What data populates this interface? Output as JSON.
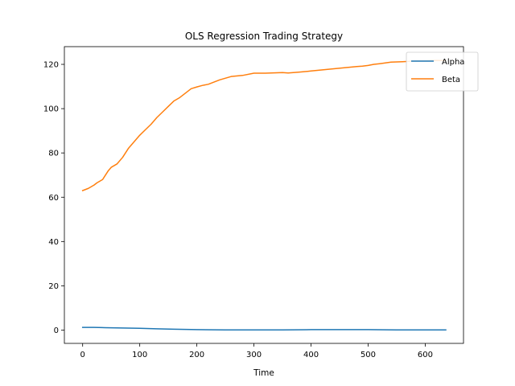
{
  "chart_data": {
    "type": "line",
    "title": "OLS Regression Trading Strategy",
    "xlabel": "Time",
    "ylabel": "",
    "xlim": [
      -32,
      667
    ],
    "ylim": [
      -6,
      128
    ],
    "xticks": [
      0,
      100,
      200,
      300,
      400,
      500,
      600
    ],
    "yticks": [
      0,
      20,
      40,
      60,
      80,
      100,
      120
    ],
    "grid": false,
    "legend_position": "top-right",
    "series": [
      {
        "name": "Alpha",
        "color": "#1f77b4",
        "points": [
          [
            0,
            1.2
          ],
          [
            20,
            1.2
          ],
          [
            40,
            1.1
          ],
          [
            60,
            1.0
          ],
          [
            80,
            0.9
          ],
          [
            100,
            0.8
          ],
          [
            130,
            0.6
          ],
          [
            160,
            0.4
          ],
          [
            200,
            0.2
          ],
          [
            250,
            0.1
          ],
          [
            300,
            0.1
          ],
          [
            350,
            0.1
          ],
          [
            400,
            0.2
          ],
          [
            450,
            0.2
          ],
          [
            500,
            0.2
          ],
          [
            550,
            0.1
          ],
          [
            600,
            0.1
          ],
          [
            636,
            0.1
          ]
        ]
      },
      {
        "name": "Beta",
        "color": "#ff7f0e",
        "points": [
          [
            0,
            63.0
          ],
          [
            10,
            64.0
          ],
          [
            20,
            65.5
          ],
          [
            25,
            66.5
          ],
          [
            35,
            68.0
          ],
          [
            45,
            72.0
          ],
          [
            50,
            73.5
          ],
          [
            60,
            75.0
          ],
          [
            70,
            78.0
          ],
          [
            80,
            82.0
          ],
          [
            90,
            85.0
          ],
          [
            100,
            88.0
          ],
          [
            110,
            90.5
          ],
          [
            120,
            93.0
          ],
          [
            130,
            96.0
          ],
          [
            140,
            98.5
          ],
          [
            150,
            101.0
          ],
          [
            160,
            103.5
          ],
          [
            170,
            105.0
          ],
          [
            180,
            107.0
          ],
          [
            190,
            109.0
          ],
          [
            200,
            109.8
          ],
          [
            210,
            110.5
          ],
          [
            220,
            111.0
          ],
          [
            240,
            113.0
          ],
          [
            260,
            114.5
          ],
          [
            280,
            115.0
          ],
          [
            300,
            116.0
          ],
          [
            320,
            116.0
          ],
          [
            340,
            116.2
          ],
          [
            350,
            116.3
          ],
          [
            360,
            116.1
          ],
          [
            380,
            116.5
          ],
          [
            400,
            117.0
          ],
          [
            420,
            117.5
          ],
          [
            440,
            118.0
          ],
          [
            460,
            118.5
          ],
          [
            480,
            119.0
          ],
          [
            490,
            119.2
          ],
          [
            500,
            119.5
          ],
          [
            510,
            120.0
          ],
          [
            520,
            120.3
          ],
          [
            540,
            121.0
          ],
          [
            560,
            121.2
          ],
          [
            580,
            121.5
          ],
          [
            600,
            121.6
          ],
          [
            620,
            121.8
          ],
          [
            636,
            121.7
          ]
        ]
      }
    ]
  }
}
